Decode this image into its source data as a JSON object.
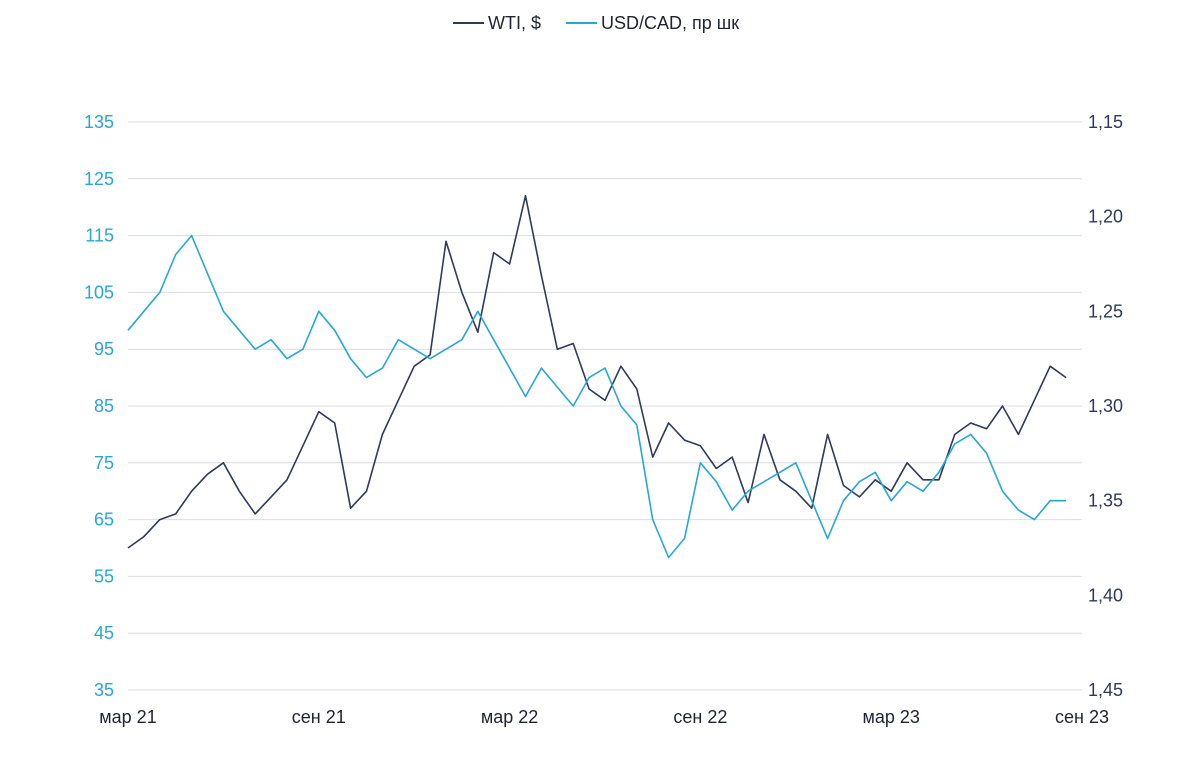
{
  "chart_data": {
    "type": "line",
    "title": "",
    "colors": {
      "wti": "#2f3a5a",
      "usdcad": "#2aa6d6",
      "grid": "#d9dde3"
    },
    "left_axis": {
      "label": "",
      "ylim": [
        35,
        135
      ],
      "ticks": [
        "135",
        "125",
        "115",
        "105",
        "95",
        "85",
        "75",
        "65",
        "55",
        "45",
        "35"
      ]
    },
    "right_axis": {
      "label": "",
      "ylim_top_to_bottom": [
        1.15,
        1.45
      ],
      "ticks": [
        "1,15",
        "1,20",
        "1,25",
        "1,30",
        "1,35",
        "1,40",
        "1,45"
      ]
    },
    "x_ticks": [
      "мар 21",
      "сен 21",
      "мар 22",
      "сен 22",
      "мар 23",
      "сен 23"
    ],
    "x_range_months": [
      0,
      30
    ],
    "series": [
      {
        "name": "WTI, $",
        "axis": "left",
        "x": [
          0,
          0.5,
          1,
          1.5,
          2,
          2.5,
          3,
          3.5,
          4,
          4.5,
          5,
          5.5,
          6,
          6.5,
          7,
          7.5,
          8,
          8.5,
          9,
          9.5,
          10,
          10.5,
          11,
          11.5,
          12,
          12.5,
          13,
          13.5,
          14,
          14.5,
          15,
          15.5,
          16,
          16.5,
          17,
          17.5,
          18,
          18.5,
          19,
          19.5,
          20,
          20.5,
          21,
          21.5,
          22,
          22.5,
          23,
          23.5,
          24,
          24.5,
          25,
          25.5,
          26,
          26.5,
          27,
          27.5,
          28,
          28.5,
          29,
          29.5
        ],
        "values": [
          60,
          62,
          65,
          66,
          70,
          73,
          75,
          70,
          66,
          69,
          72,
          78,
          84,
          82,
          67,
          70,
          80,
          86,
          92,
          94,
          114,
          105,
          98,
          112,
          110,
          122,
          108,
          95,
          96,
          88,
          86,
          92,
          88,
          76,
          82,
          79,
          78,
          74,
          76,
          68,
          80,
          72,
          70,
          67,
          80,
          71,
          69,
          72,
          70,
          75,
          72,
          72,
          80,
          82,
          81,
          85,
          80,
          86,
          92,
          90
        ]
      },
      {
        "name": "USD/CAD, пр шк",
        "axis": "right",
        "x": [
          0,
          0.5,
          1,
          1.5,
          2,
          2.5,
          3,
          3.5,
          4,
          4.5,
          5,
          5.5,
          6,
          6.5,
          7,
          7.5,
          8,
          8.5,
          9,
          9.5,
          10,
          10.5,
          11,
          11.5,
          12,
          12.5,
          13,
          13.5,
          14,
          14.5,
          15,
          15.5,
          16,
          16.5,
          17,
          17.5,
          18,
          18.5,
          19,
          19.5,
          20,
          20.5,
          21,
          21.5,
          22,
          22.5,
          23,
          23.5,
          24,
          24.5,
          25,
          25.5,
          26,
          26.5,
          27,
          27.5,
          28,
          28.5,
          29,
          29.5
        ],
        "values": [
          1.26,
          1.25,
          1.24,
          1.22,
          1.21,
          1.23,
          1.25,
          1.26,
          1.27,
          1.265,
          1.275,
          1.27,
          1.25,
          1.26,
          1.275,
          1.285,
          1.28,
          1.265,
          1.27,
          1.275,
          1.27,
          1.265,
          1.25,
          1.265,
          1.28,
          1.295,
          1.28,
          1.29,
          1.3,
          1.285,
          1.28,
          1.3,
          1.31,
          1.36,
          1.38,
          1.37,
          1.33,
          1.34,
          1.355,
          1.345,
          1.34,
          1.335,
          1.33,
          1.35,
          1.37,
          1.35,
          1.34,
          1.335,
          1.35,
          1.34,
          1.345,
          1.335,
          1.32,
          1.315,
          1.325,
          1.345,
          1.355,
          1.36,
          1.35,
          1.35
        ]
      }
    ]
  }
}
